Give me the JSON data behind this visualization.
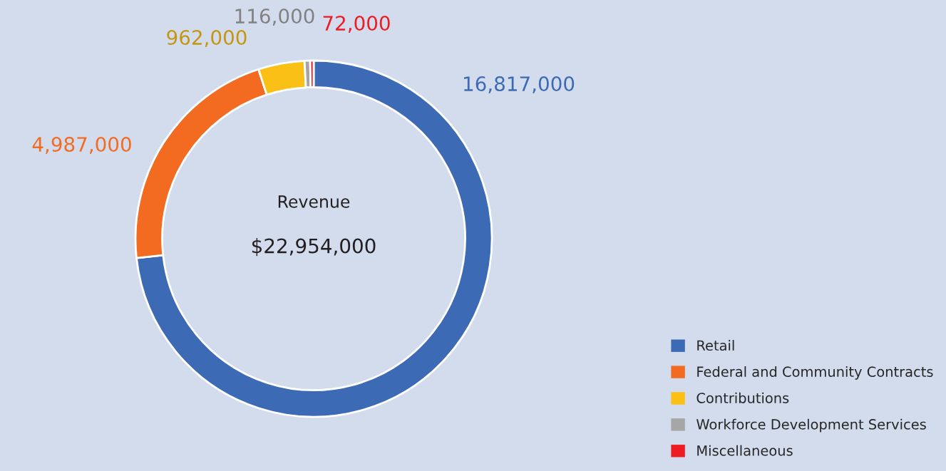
{
  "chart_data": {
    "type": "donut",
    "title": "Revenue",
    "subtitle": "$22,954,000",
    "categories": [
      "Retail",
      "Federal and Community Contracts",
      "Contributions",
      "Workforce Development Services",
      "Miscellaneous"
    ],
    "values": [
      16817000,
      4987000,
      962000,
      116000,
      72000
    ],
    "colors": [
      "#3d6ab4",
      "#f26b21",
      "#fbc015",
      "#a6a6a6",
      "#ed1c24"
    ],
    "value_labels": [
      "16,817,000",
      "4,987,000",
      "962,000",
      "116,000",
      "72,000"
    ],
    "legend": "bottom right"
  }
}
